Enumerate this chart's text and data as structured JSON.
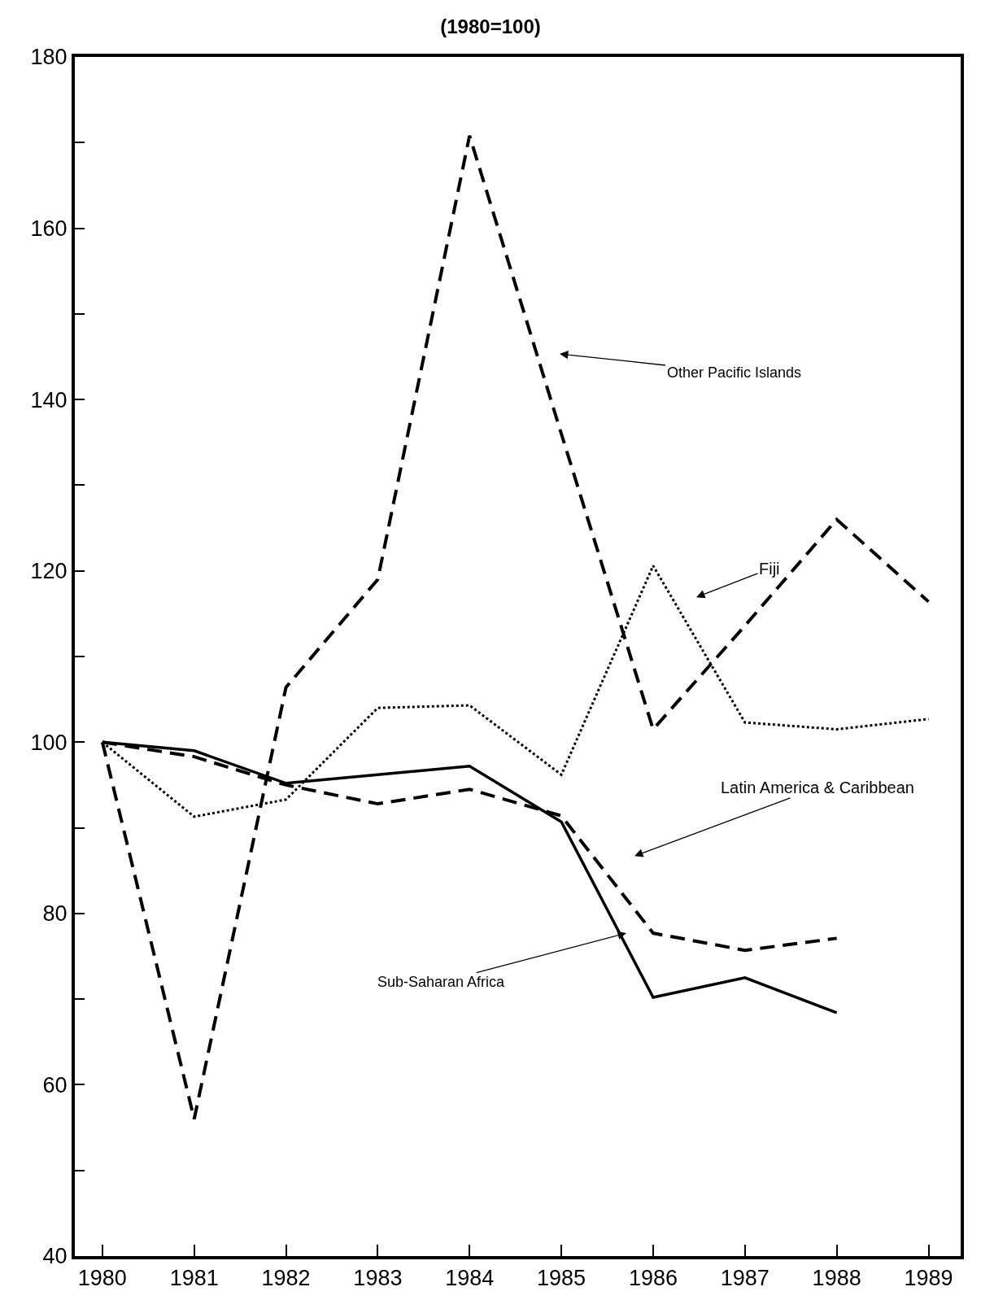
{
  "chart_data": {
    "type": "line",
    "title": "(1980=100)",
    "x": [
      1980,
      1981,
      1982,
      1983,
      1984,
      1985,
      1986,
      1987,
      1988,
      1989
    ],
    "xlim": [
      1979.7,
      1989.35
    ],
    "xticks": [
      1980,
      1981,
      1982,
      1983,
      1984,
      1985,
      1986,
      1987,
      1988,
      1989
    ],
    "ylim": [
      40,
      180
    ],
    "yticks": [
      40,
      {
        "value": 50,
        "label": null
      },
      60,
      {
        "value": 70,
        "label": null
      },
      80,
      {
        "value": 90,
        "label": null
      },
      100,
      {
        "value": 110,
        "label": null
      },
      120,
      {
        "value": 130,
        "label": null
      },
      140,
      {
        "value": 150,
        "label": null
      },
      160,
      {
        "value": 170,
        "label": null
      },
      180
    ],
    "marker": "none",
    "series": [
      {
        "color": "#000000",
        "line_style": "dashed",
        "values": [
          100,
          56,
          106.4,
          119,
          170.8,
          136,
          101.5,
          113.6,
          126,
          116.4
        ]
      },
      {
        "color": "#000000",
        "line_style": "dotted",
        "values": [
          100,
          91.3,
          93.3,
          104,
          104.3,
          96.2,
          120.6,
          102.3,
          101.5,
          102.7
        ]
      },
      {
        "color": "#000000",
        "line_style": "dashed",
        "values": [
          100,
          98.3,
          95,
          92.8,
          94.5,
          91.4,
          77.7,
          75.7,
          77.1,
          null
        ]
      },
      {
        "color": "#000000",
        "line_style": "solid",
        "values": [
          100,
          99,
          95.2,
          96.2,
          97.2,
          90.7,
          70.2,
          72.5,
          68.4,
          null
        ]
      }
    ],
    "annotations": [
      "Other Pacific Islands",
      "Fiji",
      "Latin America & Caribbean",
      "Sub-Saharan Africa"
    ]
  }
}
